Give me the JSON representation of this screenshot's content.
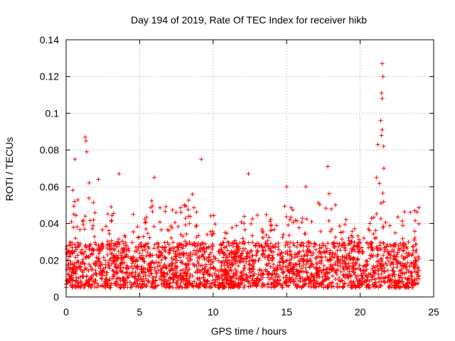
{
  "chart_data": {
    "type": "scatter",
    "title": "Day 194 of 2019, Rate Of TEC Index for receiver hikb",
    "xlabel": "GPS time / hours",
    "ylabel": "ROTI / TECUs",
    "xlim": [
      0,
      25
    ],
    "ylim": [
      0,
      0.14
    ],
    "xticks": [
      0,
      5,
      10,
      15,
      20,
      25
    ],
    "xtick_labels": [
      "0",
      "5",
      "10",
      "15",
      "20",
      "25"
    ],
    "yticks": [
      0,
      0.02,
      0.04,
      0.06,
      0.08,
      0.1,
      0.12,
      0.14
    ],
    "ytick_labels": [
      "0",
      "0.02",
      "0.04",
      "0.06",
      "0.08",
      "0.1",
      "0.12",
      "0.14"
    ],
    "grid": true,
    "marker": "+",
    "color": "#ff0000",
    "data_x_range": [
      0,
      24
    ],
    "baseline_band": [
      0.005,
      0.03
    ],
    "notable_points": [
      {
        "x": 21.5,
        "y": 0.127
      },
      {
        "x": 21.55,
        "y": 0.12
      },
      {
        "x": 21.45,
        "y": 0.111
      },
      {
        "x": 21.5,
        "y": 0.108
      },
      {
        "x": 21.4,
        "y": 0.096
      },
      {
        "x": 21.5,
        "y": 0.091
      },
      {
        "x": 21.45,
        "y": 0.088
      },
      {
        "x": 21.2,
        "y": 0.083
      },
      {
        "x": 21.6,
        "y": 0.082
      },
      {
        "x": 1.3,
        "y": 0.087
      },
      {
        "x": 1.35,
        "y": 0.085
      },
      {
        "x": 1.4,
        "y": 0.079
      },
      {
        "x": 0.6,
        "y": 0.075
      },
      {
        "x": 9.2,
        "y": 0.075
      },
      {
        "x": 17.8,
        "y": 0.071
      },
      {
        "x": 12.4,
        "y": 0.067
      },
      {
        "x": 3.6,
        "y": 0.067
      },
      {
        "x": 2.2,
        "y": 0.064
      },
      {
        "x": 6.0,
        "y": 0.065
      },
      {
        "x": 16.3,
        "y": 0.06
      },
      {
        "x": 15.0,
        "y": 0.06
      },
      {
        "x": 21.1,
        "y": 0.065
      }
    ],
    "envelope": [
      {
        "x": 0.0,
        "y": 0.045
      },
      {
        "x": 0.5,
        "y": 0.06
      },
      {
        "x": 1.0,
        "y": 0.05
      },
      {
        "x": 1.3,
        "y": 0.07
      },
      {
        "x": 2.0,
        "y": 0.055
      },
      {
        "x": 3.0,
        "y": 0.05
      },
      {
        "x": 3.6,
        "y": 0.06
      },
      {
        "x": 4.5,
        "y": 0.045
      },
      {
        "x": 5.5,
        "y": 0.045
      },
      {
        "x": 6.0,
        "y": 0.06
      },
      {
        "x": 7.0,
        "y": 0.05
      },
      {
        "x": 8.0,
        "y": 0.05
      },
      {
        "x": 9.2,
        "y": 0.065
      },
      {
        "x": 10.0,
        "y": 0.045
      },
      {
        "x": 11.0,
        "y": 0.035
      },
      {
        "x": 12.4,
        "y": 0.055
      },
      {
        "x": 13.5,
        "y": 0.045
      },
      {
        "x": 15.0,
        "y": 0.05
      },
      {
        "x": 16.3,
        "y": 0.05
      },
      {
        "x": 17.7,
        "y": 0.06
      },
      {
        "x": 18.5,
        "y": 0.05
      },
      {
        "x": 19.5,
        "y": 0.04
      },
      {
        "x": 20.5,
        "y": 0.035
      },
      {
        "x": 21.5,
        "y": 0.075
      },
      {
        "x": 22.5,
        "y": 0.045
      },
      {
        "x": 24.0,
        "y": 0.05
      }
    ]
  }
}
